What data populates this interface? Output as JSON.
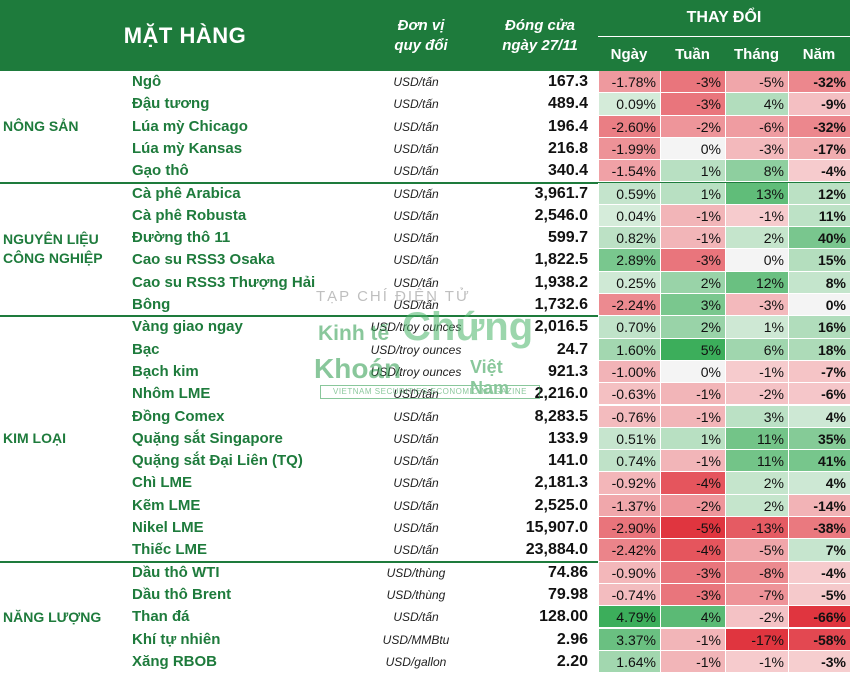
{
  "header": {
    "item": "MẶT HÀNG",
    "unit_line1": "Đơn vị",
    "unit_line2": "quy đổi",
    "close_line1": "Đóng cửa",
    "close_line2": "ngày  27/11",
    "change": "THAY ĐỔI",
    "day": "Ngày",
    "week": "Tuần",
    "month": "Tháng",
    "year": "Năm"
  },
  "groups": [
    {
      "label": "NÔNG SẢN",
      "rows": [
        0,
        4
      ]
    },
    {
      "label": "NGUYÊN LIỆU\nCÔNG NGHIỆP",
      "rows": [
        5,
        10
      ]
    },
    {
      "label": "KIM LOẠI",
      "rows": [
        11,
        21
      ]
    },
    {
      "label": "NĂNG LƯỢNG",
      "rows": [
        22,
        26
      ]
    }
  ],
  "rows": [
    {
      "name": "Ngô",
      "unit": "USD/tấn",
      "close": "167.3",
      "day": "-1.78%",
      "week": "-3%",
      "month": "-5%",
      "year": "-32%"
    },
    {
      "name": "Đậu tương",
      "unit": "USD/tấn",
      "close": "489.4",
      "day": "0.09%",
      "week": "-3%",
      "month": "4%",
      "year": "-9%"
    },
    {
      "name": "Lúa mỳ Chicago",
      "unit": "USD/tấn",
      "close": "196.4",
      "day": "-2.60%",
      "week": "-2%",
      "month": "-6%",
      "year": "-32%"
    },
    {
      "name": "Lúa mỳ Kansas",
      "unit": "USD/tấn",
      "close": "216.8",
      "day": "-1.99%",
      "week": "0%",
      "month": "-3%",
      "year": "-17%"
    },
    {
      "name": "Gạo thô",
      "unit": "USD/tấn",
      "close": "340.4",
      "day": "-1.54%",
      "week": "1%",
      "month": "8%",
      "year": "-4%"
    },
    {
      "name": "Cà phê Arabica",
      "unit": "USD/tấn",
      "close": "3,961.7",
      "day": "0.59%",
      "week": "1%",
      "month": "13%",
      "year": "12%"
    },
    {
      "name": "Cà phê Robusta",
      "unit": "USD/tấn",
      "close": "2,546.0",
      "day": "0.04%",
      "week": "-1%",
      "month": "-1%",
      "year": "11%"
    },
    {
      "name": "Đường thô 11",
      "unit": "USD/tấn",
      "close": "599.7",
      "day": "0.82%",
      "week": "-1%",
      "month": "2%",
      "year": "40%"
    },
    {
      "name": "Cao su RSS3 Osaka",
      "unit": "USD/tấn",
      "close": "1,822.5",
      "day": "2.89%",
      "week": "-3%",
      "month": "0%",
      "year": "15%"
    },
    {
      "name": "Cao su RSS3 Thượng Hải",
      "unit": "USD/tấn",
      "close": "1,938.2",
      "day": "0.25%",
      "week": "2%",
      "month": "12%",
      "year": "8%"
    },
    {
      "name": "Bông",
      "unit": "USD/tấn",
      "close": "1,732.6",
      "day": "-2.24%",
      "week": "3%",
      "month": "-3%",
      "year": "0%"
    },
    {
      "name": "Vàng giao ngay",
      "unit": "USD/troy ounces",
      "close": "2,016.5",
      "day": "0.70%",
      "week": "2%",
      "month": "1%",
      "year": "16%"
    },
    {
      "name": "Bạc",
      "unit": "USD/troy ounces",
      "close": "24.7",
      "day": "1.60%",
      "week": "5%",
      "month": "6%",
      "year": "18%"
    },
    {
      "name": "Bạch kim",
      "unit": "USD/troy ounces",
      "close": "921.3",
      "day": "-1.00%",
      "week": "0%",
      "month": "-1%",
      "year": "-7%"
    },
    {
      "name": "Nhôm LME",
      "unit": "USD/tấn",
      "close": "2,216.0",
      "day": "-0.63%",
      "week": "-1%",
      "month": "-2%",
      "year": "-6%"
    },
    {
      "name": "Đồng Comex",
      "unit": "USD/tấn",
      "close": "8,283.5",
      "day": "-0.76%",
      "week": "-1%",
      "month": "3%",
      "year": "4%"
    },
    {
      "name": "Quặng sắt Singapore",
      "unit": "USD/tấn",
      "close": "133.9",
      "day": "0.51%",
      "week": "1%",
      "month": "11%",
      "year": "35%"
    },
    {
      "name": "Quặng sắt Đại Liên (TQ)",
      "unit": "USD/tấn",
      "close": "141.0",
      "day": "0.74%",
      "week": "-1%",
      "month": "11%",
      "year": "41%"
    },
    {
      "name": "Chì LME",
      "unit": "USD/tấn",
      "close": "2,181.3",
      "day": "-0.92%",
      "week": "-4%",
      "month": "2%",
      "year": "4%"
    },
    {
      "name": "Kẽm LME",
      "unit": "USD/tấn",
      "close": "2,525.0",
      "day": "-1.37%",
      "week": "-2%",
      "month": "2%",
      "year": "-14%"
    },
    {
      "name": "Nikel LME",
      "unit": "USD/tấn",
      "close": "15,907.0",
      "day": "-2.90%",
      "week": "-5%",
      "month": "-13%",
      "year": "-38%"
    },
    {
      "name": "Thiếc LME",
      "unit": "USD/tấn",
      "close": "23,884.0",
      "day": "-2.42%",
      "week": "-4%",
      "month": "-5%",
      "year": "7%"
    },
    {
      "name": "Dầu thô WTI",
      "unit": "USD/thùng",
      "close": "74.86",
      "day": "-0.90%",
      "week": "-3%",
      "month": "-8%",
      "year": "-4%"
    },
    {
      "name": "Dầu thô Brent",
      "unit": "USD/thùng",
      "close": "79.98",
      "day": "-0.74%",
      "week": "-3%",
      "month": "-7%",
      "year": "-5%"
    },
    {
      "name": "Than đá",
      "unit": "USD/tấn",
      "close": "128.00",
      "day": "4.79%",
      "week": "4%",
      "month": "-2%",
      "year": "-66%"
    },
    {
      "name": "Khí tự nhiên",
      "unit": "USD/MMBtu",
      "close": "2.96",
      "day": "3.37%",
      "week": "-1%",
      "month": "-17%",
      "year": "-58%"
    },
    {
      "name": "Xăng RBOB",
      "unit": "USD/gallon",
      "close": "2.20",
      "day": "1.64%",
      "week": "-1%",
      "month": "-1%",
      "year": "-3%"
    }
  ],
  "watermark": {
    "top": "TẠP CHÍ ĐIỆN TỬ",
    "kinh_te": "Kinh tế",
    "chung": "Chứng",
    "khoan": "Khoán",
    "viet_nam": "Việt Nam",
    "tagline": "VIETNAM SECURITIES ECONOMIC MAGAZINE"
  },
  "colors": {
    "header_bg": "#1e7b3c",
    "label_green": "#1e7b3c",
    "positive_max": "#3cae5b",
    "negative_max": "#e0353f"
  }
}
